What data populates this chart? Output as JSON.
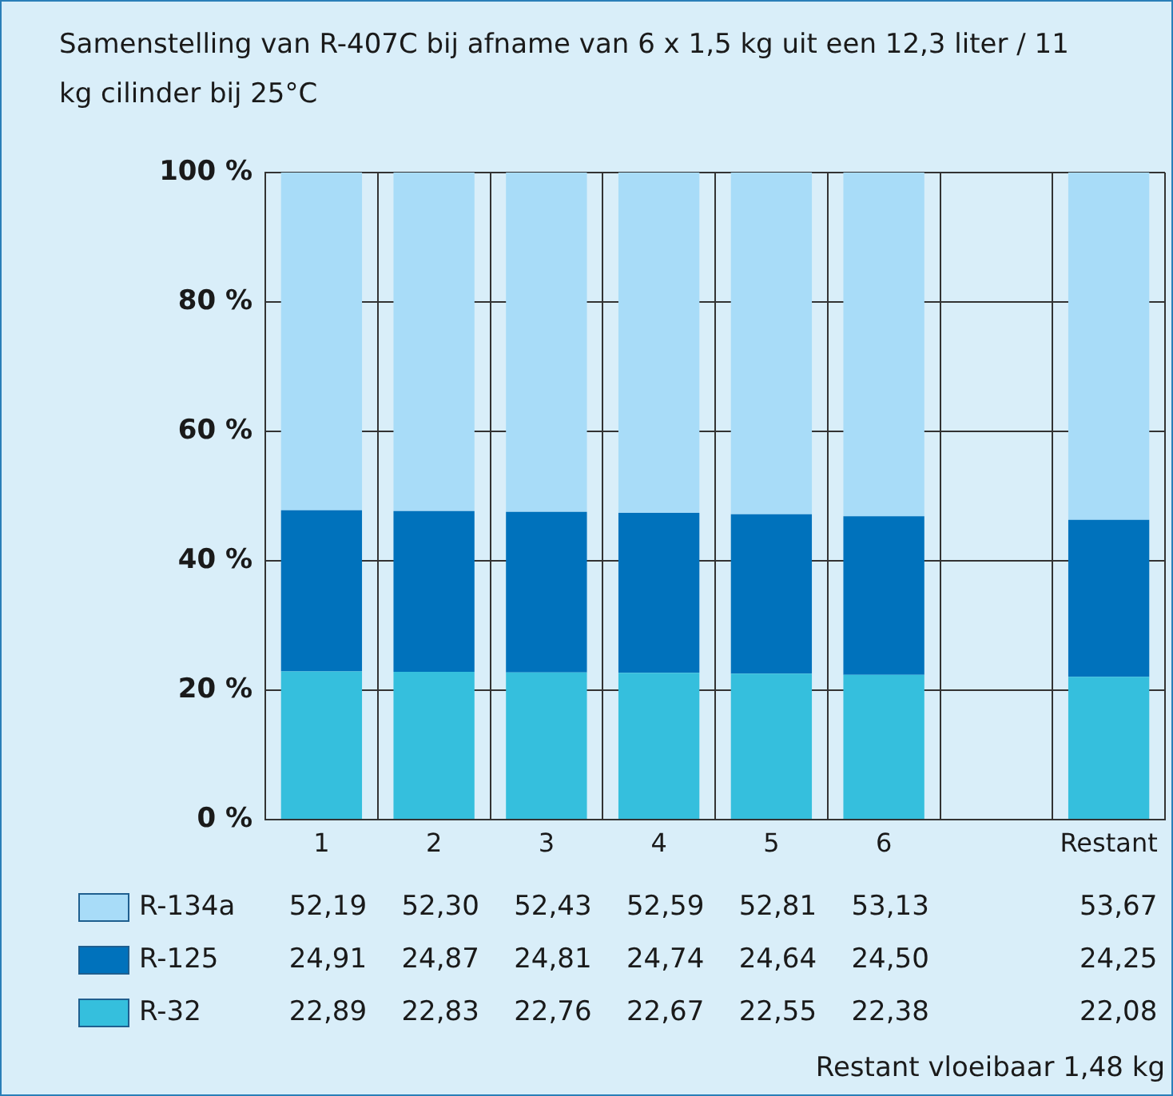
{
  "chart_data": {
    "type": "bar",
    "title": "Samenstelling van R-407C bij afname van 6 x 1,5 kg uit een 12,3 liter / 11 kg cilinder bij 25°C",
    "categories": [
      "1",
      "2",
      "3",
      "4",
      "5",
      "6",
      null,
      "Restant"
    ],
    "stacked": true,
    "series": [
      {
        "name": "R-32",
        "color": "#35bfdd",
        "values": [
          22.89,
          22.83,
          22.76,
          22.67,
          22.55,
          22.38,
          null,
          22.08
        ],
        "value_labels": [
          "22,89",
          "22,83",
          "22,76",
          "22,67",
          "22,55",
          "22,38",
          null,
          "22,08"
        ]
      },
      {
        "name": "R-125",
        "color": "#0072bc",
        "values": [
          24.91,
          24.87,
          24.81,
          24.74,
          24.64,
          24.5,
          null,
          24.25
        ],
        "value_labels": [
          "24,91",
          "24,87",
          "24,81",
          "24,74",
          "24,64",
          "24,50",
          null,
          "24,25"
        ]
      },
      {
        "name": "R-134a",
        "color": "#a8dcf8",
        "values": [
          52.19,
          52.3,
          52.43,
          52.59,
          52.81,
          53.13,
          null,
          53.67
        ],
        "value_labels": [
          "52,19",
          "52,30",
          "52,43",
          "52,59",
          "52,81",
          "53,13",
          null,
          "53,67"
        ]
      }
    ],
    "ylim": [
      0,
      100
    ],
    "yticks": [
      {
        "value": 0,
        "label": "0 %"
      },
      {
        "value": 20,
        "label": "20 %"
      },
      {
        "value": 40,
        "label": "40 %"
      },
      {
        "value": 60,
        "label": "60 %"
      },
      {
        "value": 80,
        "label": "80 %"
      },
      {
        "value": 100,
        "label": "100 %"
      }
    ],
    "grid": true,
    "legend": "bottom",
    "annotations": [
      "Restant vloeibaar 1,48 kg"
    ]
  }
}
